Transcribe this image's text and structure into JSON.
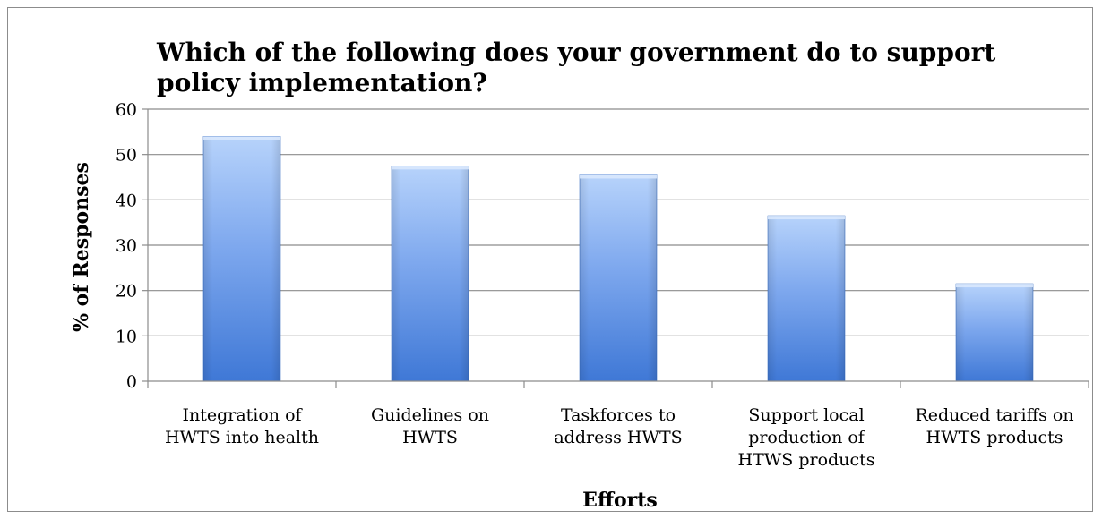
{
  "chart_data": {
    "type": "bar",
    "title": "Which of the following does your government do to support policy implementation?",
    "xlabel": "Efforts",
    "ylabel": "% of Responses",
    "categories": [
      [
        "Integration of",
        "HWTS into health"
      ],
      [
        "Guidelines on",
        "HWTS"
      ],
      [
        "Taskforces to",
        "address HWTS"
      ],
      [
        "Support local",
        "production of",
        "HTWS products"
      ],
      [
        "Reduced tariffs on",
        "HWTS products"
      ]
    ],
    "values": [
      54,
      47.5,
      45.5,
      36.5,
      21.5
    ],
    "ylim": [
      0,
      60
    ],
    "yticks": [
      0,
      10,
      20,
      30,
      40,
      50,
      60
    ],
    "grid": true,
    "legend": "none",
    "colors": {
      "bar_light": "#b7d3fb",
      "bar_mid": "#7ea8ee",
      "bar_dark": "#3f78d6",
      "bar_edge": "#3a6fc4",
      "grid": "#8c8c8c"
    }
  }
}
